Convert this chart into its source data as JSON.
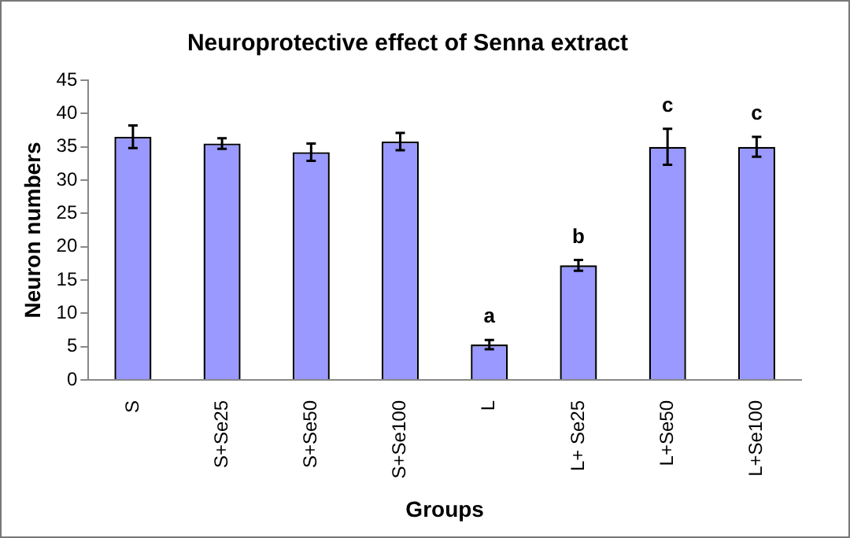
{
  "chart_data": {
    "type": "bar",
    "title": "Neuroprotective effect of Senna extract",
    "xlabel": "Groups",
    "ylabel": "Neuron numbers",
    "categories": [
      "S",
      "S+Se25",
      "S+Se50",
      "S+Se100",
      "L",
      "L+ Se25",
      "L+Se50",
      "L+Se100"
    ],
    "values": [
      36.5,
      35.5,
      34.2,
      35.8,
      5.3,
      17.2,
      35,
      35
    ],
    "errors": [
      1.7,
      0.8,
      1.3,
      1.3,
      0.7,
      0.8,
      2.7,
      1.5
    ],
    "color": "#9999ff",
    "ylim": [
      0,
      45
    ],
    "yticks": [
      0,
      5,
      10,
      15,
      20,
      25,
      30,
      35,
      40,
      45
    ],
    "grid": false,
    "legend": false,
    "annotations": [
      {
        "text": "a",
        "x": "L",
        "y": 5.3
      },
      {
        "text": "b",
        "x": "L+ Se25",
        "y": 17.2
      },
      {
        "text": "c",
        "x": "L+Se50",
        "y": 35
      },
      {
        "text": "c",
        "x": "L+Se100",
        "y": 35
      }
    ]
  }
}
